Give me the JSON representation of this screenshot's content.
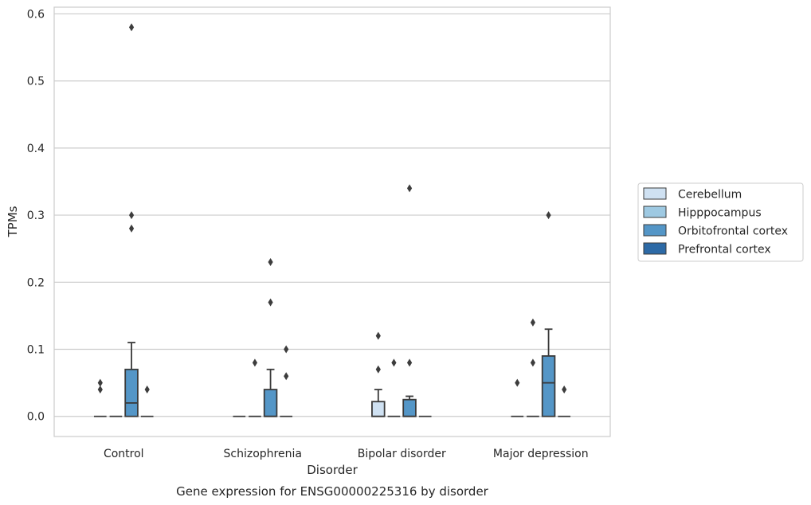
{
  "chart_data": {
    "type": "box",
    "title": "Gene expression for ENSG00000225316 by disorder",
    "xlabel": "Disorder",
    "ylabel": "TPMs",
    "ylim": [
      -0.03,
      0.61
    ],
    "y_ticks": [
      "0.0",
      "0.1",
      "0.2",
      "0.3",
      "0.4",
      "0.5",
      "0.6"
    ],
    "grid": "horizontal",
    "legend_position": "right",
    "categories": [
      "Control",
      "Schizophrenia",
      "Bipolar disorder",
      "Major depression"
    ],
    "series": [
      {
        "name": "Cerebellum",
        "color": "#cfe1f2",
        "boxes": [
          {
            "category": "Control",
            "q1": 0,
            "median": 0,
            "q3": 0,
            "whisker_low": 0,
            "whisker_high": 0,
            "outliers": [
              0.04,
              0.05
            ]
          },
          {
            "category": "Schizophrenia",
            "q1": 0,
            "median": 0,
            "q3": 0,
            "whisker_low": 0,
            "whisker_high": 0,
            "outliers": []
          },
          {
            "category": "Bipolar disorder",
            "q1": 0,
            "median": 0,
            "q3": 0.022,
            "whisker_low": 0,
            "whisker_high": 0.04,
            "outliers": [
              0.07,
              0.12
            ]
          },
          {
            "category": "Major depression",
            "q1": 0,
            "median": 0,
            "q3": 0,
            "whisker_low": 0,
            "whisker_high": 0,
            "outliers": [
              0.05
            ]
          }
        ]
      },
      {
        "name": "Hipppocampus",
        "color": "#9ec9e2",
        "boxes": [
          {
            "category": "Control",
            "q1": 0,
            "median": 0,
            "q3": 0,
            "whisker_low": 0,
            "whisker_high": 0,
            "outliers": []
          },
          {
            "category": "Schizophrenia",
            "q1": 0,
            "median": 0,
            "q3": 0,
            "whisker_low": 0,
            "whisker_high": 0,
            "outliers": [
              0.08
            ]
          },
          {
            "category": "Bipolar disorder",
            "q1": 0,
            "median": 0,
            "q3": 0,
            "whisker_low": 0,
            "whisker_high": 0,
            "outliers": [
              0.08
            ]
          },
          {
            "category": "Major depression",
            "q1": 0,
            "median": 0,
            "q3": 0,
            "whisker_low": 0,
            "whisker_high": 0,
            "outliers": [
              0.08,
              0.14
            ]
          }
        ]
      },
      {
        "name": "Orbitofrontal cortex",
        "color": "#5496c7",
        "boxes": [
          {
            "category": "Control",
            "q1": 0,
            "median": 0.02,
            "q3": 0.07,
            "whisker_low": 0,
            "whisker_high": 0.11,
            "outliers": [
              0.28,
              0.3,
              0.58
            ]
          },
          {
            "category": "Schizophrenia",
            "q1": 0,
            "median": 0,
            "q3": 0.04,
            "whisker_low": 0,
            "whisker_high": 0.07,
            "outliers": [
              0.17,
              0.23
            ]
          },
          {
            "category": "Bipolar disorder",
            "q1": 0,
            "median": 0,
            "q3": 0.025,
            "whisker_low": 0,
            "whisker_high": 0.03,
            "outliers": [
              0.08,
              0.34
            ]
          },
          {
            "category": "Major depression",
            "q1": 0,
            "median": 0.05,
            "q3": 0.09,
            "whisker_low": 0,
            "whisker_high": 0.13,
            "outliers": [
              0.3
            ]
          }
        ]
      },
      {
        "name": "Prefrontal cortex",
        "color": "#2d6aa6",
        "boxes": [
          {
            "category": "Control",
            "q1": 0,
            "median": 0,
            "q3": 0,
            "whisker_low": 0,
            "whisker_high": 0,
            "outliers": [
              0.04
            ]
          },
          {
            "category": "Schizophrenia",
            "q1": 0,
            "median": 0,
            "q3": 0,
            "whisker_low": 0,
            "whisker_high": 0,
            "outliers": [
              0.06,
              0.1
            ]
          },
          {
            "category": "Bipolar disorder",
            "q1": 0,
            "median": 0,
            "q3": 0,
            "whisker_low": 0,
            "whisker_high": 0,
            "outliers": []
          },
          {
            "category": "Major depression",
            "q1": 0,
            "median": 0,
            "q3": 0,
            "whisker_low": 0,
            "whisker_high": 0,
            "outliers": [
              0.04
            ]
          }
        ]
      }
    ]
  }
}
